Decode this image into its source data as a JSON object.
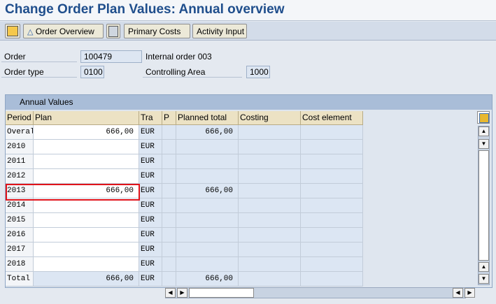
{
  "title": "Change Order Plan Values: Annual overview",
  "toolbar": {
    "buttons": [
      "Order Overview",
      "Primary Costs",
      "Activity Input"
    ]
  },
  "header": {
    "fields": [
      {
        "label": "Order",
        "value": "100479",
        "text": "Internal order 003"
      },
      {
        "label": "Order type",
        "value": "0100"
      },
      {
        "label": "Controlling Area",
        "value": "1000"
      }
    ]
  },
  "table": {
    "title": "Annual Values",
    "columns": [
      "Period",
      "Plan",
      "Tra",
      "P",
      "Planned total",
      "Costing",
      "Cost element"
    ],
    "rows": [
      {
        "period": "Overal",
        "plan": "666,00",
        "currency": "EUR",
        "planned_total": "666,00"
      },
      {
        "period": "2010",
        "currency": "EUR"
      },
      {
        "period": "2011",
        "currency": "EUR"
      },
      {
        "period": "2012",
        "currency": "EUR"
      },
      {
        "period": "2013",
        "plan": "666,00",
        "currency": "EUR",
        "planned_total": "666,00"
      },
      {
        "period": "2014",
        "currency": "EUR"
      },
      {
        "period": "2015",
        "currency": "EUR"
      },
      {
        "period": "2016",
        "currency": "EUR"
      },
      {
        "period": "2017",
        "currency": "EUR"
      },
      {
        "period": "2018",
        "currency": "EUR"
      },
      {
        "period": "Total",
        "plan": "666,00",
        "currency": "EUR",
        "planned_total": "666,00"
      }
    ]
  }
}
